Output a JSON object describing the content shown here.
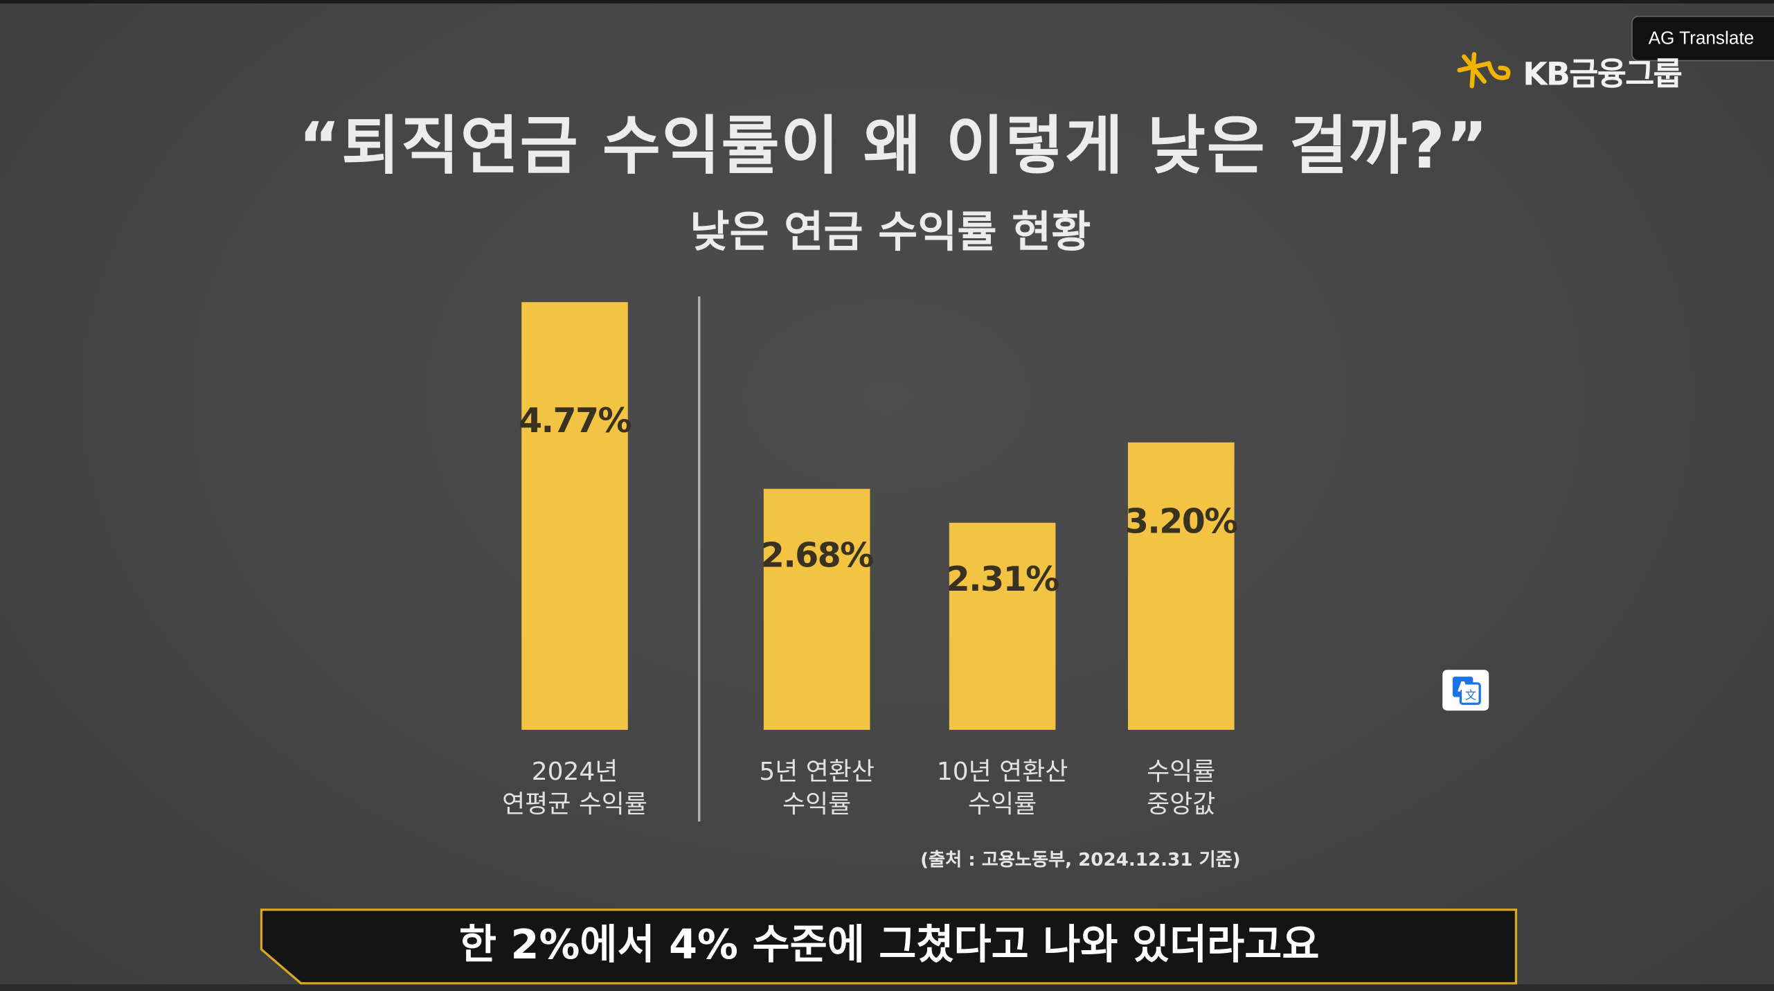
{
  "app": {
    "translate_button": "AG Translate",
    "logo": "KB금융그룹"
  },
  "chart_data": {
    "type": "bar",
    "title": "“퇴직연금 수익률이 왜 이렇게 낮은 걸까?”",
    "subtitle": "낮은 연금 수익률 현황",
    "categories": [
      "2024년\n연평균 수익률",
      "5년 연환산\n수익률",
      "10년 연환산\n수익률",
      "수익률\n중앙값"
    ],
    "values": [
      4.77,
      2.68,
      2.31,
      3.2
    ],
    "value_labels": [
      "4.77%",
      "2.68%",
      "2.31%",
      "3.20%"
    ],
    "color": "#f3c443",
    "source": "(출처 : 고용노동부, 2024.12.31 기준)"
  },
  "caption": "한 2%에서 4% 수준에 그쳤다고 나와 있더라고요"
}
